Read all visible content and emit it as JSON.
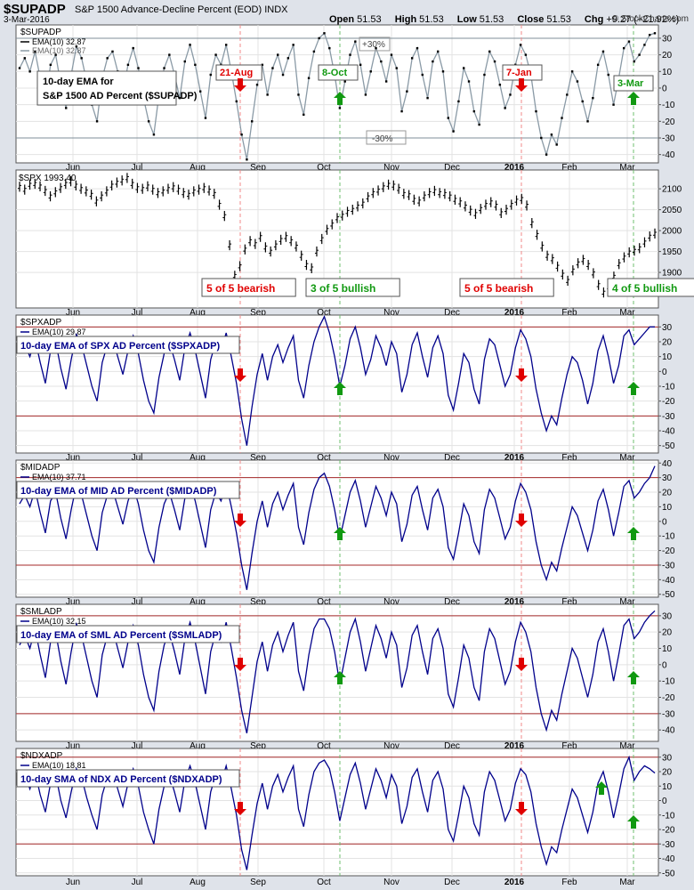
{
  "header": {
    "symbol": "$SUPADP",
    "name": "S&P 1500 Advance-Decline Percent (EOD)",
    "exchange": "INDX",
    "date": "3-Mar-2016",
    "open_label": "Open",
    "open": "51.53",
    "high_label": "High",
    "high": "51.53",
    "low_label": "Low",
    "low": "51.53",
    "close_label": "Close",
    "close": "51.53",
    "chg_label": "Chg",
    "chg": "+9.27 (+21.92%)",
    "logo": "© StockCharts.com"
  },
  "colors": {
    "navy": "#00008b",
    "grey_line": "#8a9aa6",
    "threshold": "#a52a2a",
    "bear": "#e00000",
    "bull": "#119911",
    "background": "#dfe3ea",
    "plot": "#ffffff"
  },
  "x_axis": {
    "months": [
      "Jun",
      "Jul",
      "Aug",
      "Sep",
      "Oct",
      "Nov",
      "Dec",
      "2016",
      "Feb",
      "Mar"
    ]
  },
  "events": {
    "bearish": [
      "21-Aug",
      "7-Jan"
    ],
    "bullish": [
      "8-Oct",
      "3-Mar"
    ]
  },
  "chart_data": [
    {
      "type": "line",
      "id": "supadp",
      "title": "$SUPADP",
      "legend": [
        "$SUPADP",
        "EMA(10) 32.87",
        "EMA(10) 32.87"
      ],
      "annotation": "10-day EMA for S&P 1500 AD Percent ($SUPADP)",
      "ylim": [
        -45,
        38
      ],
      "yticks": [
        30,
        20,
        10,
        0,
        -10,
        -20,
        -30,
        -40
      ],
      "thresholds": [
        30,
        -30
      ],
      "threshold_labels": [
        "+30%",
        "-30%"
      ],
      "event_labels": [
        "21-Aug",
        "8-Oct",
        "7-Jan",
        "3-Mar"
      ],
      "signal": [
        "bear",
        "bull",
        "bear",
        "bull"
      ],
      "extremes": {
        "min": -43,
        "max": 33
      },
      "series": [
        {
          "name": "$SUPADP",
          "values": [
            12,
            18,
            10,
            22,
            6,
            -8,
            14,
            20,
            2,
            -12,
            8,
            25,
            18,
            4,
            -10,
            -20,
            6,
            18,
            22,
            10,
            -2,
            14,
            24,
            12,
            -6,
            -20,
            -28,
            -4,
            12,
            20,
            8,
            -6,
            16,
            26,
            14,
            -2,
            -18,
            8,
            20,
            14,
            26,
            10,
            -8,
            -28,
            -43,
            -20,
            2,
            14,
            -4,
            12,
            20,
            8,
            18,
            26,
            -4,
            -16,
            6,
            22,
            30,
            33,
            24,
            8,
            -12,
            4,
            20,
            28,
            14,
            -4,
            10,
            24,
            16,
            4,
            20,
            12,
            -14,
            -2,
            18,
            24,
            8,
            -6,
            16,
            22,
            10,
            -18,
            -26,
            -8,
            12,
            4,
            -14,
            -22,
            8,
            22,
            16,
            2,
            -12,
            -4,
            14,
            26,
            20,
            8,
            -14,
            -30,
            -40,
            -28,
            -34,
            -18,
            -4,
            10,
            4,
            -8,
            -20,
            -6,
            14,
            22,
            8,
            -10,
            6,
            24,
            28,
            16,
            20,
            26,
            32,
            33
          ]
        }
      ]
    },
    {
      "type": "line",
      "id": "spx",
      "title": "$SPX",
      "legend": [
        "$SPX 1993.40"
      ],
      "ylim": [
        1815,
        2145
      ],
      "yticks": [
        2100,
        2050,
        2000,
        1950,
        1900
      ],
      "signal_labels": [
        "5 of 5 bearish",
        "3 of 5 bullish",
        "5 of 5 bearish",
        "4 of 5 bullish"
      ],
      "series": [
        {
          "name": "$SPX",
          "values": [
            2105,
            2098,
            2110,
            2112,
            2106,
            2095,
            2082,
            2092,
            2102,
            2112,
            2118,
            2108,
            2100,
            2094,
            2086,
            2070,
            2082,
            2094,
            2108,
            2115,
            2120,
            2126,
            2112,
            2102,
            2100,
            2106,
            2098,
            2090,
            2094,
            2100,
            2104,
            2098,
            2090,
            2086,
            2094,
            2098,
            2102,
            2096,
            2088,
            2062,
            2035,
            1965,
            1892,
            1915,
            1955,
            1975,
            1968,
            1985,
            1960,
            1950,
            1965,
            1978,
            1985,
            1975,
            1962,
            1940,
            1918,
            1910,
            1950,
            1980,
            2002,
            2015,
            2030,
            2036,
            2045,
            2050,
            2058,
            2065,
            2080,
            2090,
            2096,
            2104,
            2110,
            2108,
            2100,
            2088,
            2085,
            2074,
            2070,
            2082,
            2090,
            2095,
            2090,
            2088,
            2082,
            2074,
            2068,
            2058,
            2048,
            2040,
            2052,
            2062,
            2068,
            2060,
            2042,
            2050,
            2062,
            2072,
            2076,
            2060,
            2018,
            1990,
            1962,
            1940,
            1932,
            1914,
            1895,
            1880,
            1905,
            1922,
            1930,
            1918,
            1898,
            1870,
            1852,
            1865,
            1890,
            1920,
            1936,
            1948,
            1952,
            1958,
            1972,
            1986,
            1993
          ]
        }
      ]
    },
    {
      "type": "line",
      "id": "spxadp",
      "title": "$SPXADP",
      "legend": [
        "$SPXADP",
        "EMA(10) 29.87"
      ],
      "annotation": "10-day EMA of SPX AD Percent ($SPXADP)",
      "ylim": [
        -55,
        38
      ],
      "yticks": [
        30,
        20,
        10,
        0,
        -10,
        -20,
        -30,
        -40,
        -50
      ],
      "thresholds": [
        30,
        -30
      ],
      "signal": [
        "bear",
        "bull",
        "bear",
        "bull"
      ],
      "extremes": {
        "min": -50,
        "max": 37
      },
      "series": [
        {
          "name": "$SPXADP",
          "values": [
            12,
            18,
            10,
            22,
            6,
            -8,
            14,
            20,
            2,
            -12,
            8,
            25,
            18,
            4,
            -10,
            -20,
            6,
            18,
            22,
            10,
            -2,
            14,
            24,
            12,
            -6,
            -20,
            -28,
            -4,
            12,
            20,
            8,
            -6,
            16,
            26,
            14,
            -2,
            -18,
            8,
            20,
            14,
            26,
            10,
            -8,
            -32,
            -50,
            -24,
            -2,
            12,
            -6,
            10,
            18,
            6,
            16,
            24,
            -6,
            -18,
            4,
            20,
            30,
            37,
            26,
            10,
            -10,
            4,
            22,
            30,
            16,
            -2,
            8,
            24,
            16,
            4,
            20,
            12,
            -14,
            -2,
            18,
            26,
            10,
            -4,
            16,
            24,
            12,
            -16,
            -26,
            -8,
            12,
            6,
            -12,
            -22,
            8,
            22,
            18,
            4,
            -10,
            -2,
            16,
            28,
            22,
            10,
            -12,
            -28,
            -40,
            -30,
            -36,
            -18,
            -2,
            10,
            6,
            -6,
            -22,
            -8,
            14,
            24,
            10,
            -8,
            4,
            24,
            28,
            18,
            22,
            26,
            30,
            30
          ]
        }
      ]
    },
    {
      "type": "line",
      "id": "midadp",
      "title": "$MIDADP",
      "legend": [
        "$MIDADP",
        "EMA(10) 37.71"
      ],
      "annotation": "10-day EMA of MID AD Percent ($MIDADP)",
      "ylim": [
        -52,
        42
      ],
      "yticks": [
        40,
        30,
        20,
        10,
        0,
        -10,
        -20,
        -30,
        -40,
        -50
      ],
      "thresholds": [
        30,
        -30
      ],
      "signal": [
        "bear",
        "bull",
        "bear",
        "bull"
      ],
      "extremes": {
        "min": -47,
        "max": 38
      },
      "series": [
        {
          "name": "$MIDADP",
          "values": [
            12,
            18,
            10,
            22,
            6,
            -8,
            14,
            20,
            2,
            -12,
            8,
            25,
            18,
            4,
            -10,
            -20,
            6,
            18,
            22,
            10,
            -2,
            14,
            24,
            12,
            -6,
            -20,
            -28,
            -4,
            12,
            20,
            8,
            -6,
            16,
            26,
            14,
            -2,
            -18,
            8,
            20,
            14,
            26,
            10,
            -8,
            -30,
            -47,
            -22,
            0,
            14,
            -4,
            12,
            20,
            8,
            18,
            26,
            -4,
            -16,
            6,
            22,
            30,
            33,
            24,
            8,
            -12,
            4,
            20,
            28,
            14,
            -4,
            10,
            24,
            16,
            4,
            20,
            12,
            -14,
            -2,
            18,
            24,
            8,
            -6,
            16,
            22,
            10,
            -18,
            -26,
            -8,
            12,
            4,
            -14,
            -22,
            8,
            22,
            16,
            2,
            -12,
            -4,
            14,
            26,
            20,
            8,
            -14,
            -30,
            -40,
            -28,
            -34,
            -18,
            -4,
            10,
            4,
            -8,
            -20,
            -6,
            14,
            22,
            8,
            -10,
            6,
            24,
            28,
            16,
            20,
            26,
            30,
            38
          ]
        }
      ]
    },
    {
      "type": "line",
      "id": "smladp",
      "title": "$SMLADP",
      "legend": [
        "$SMLADP",
        "EMA(10) 32.15"
      ],
      "annotation": "10-day EMA of SML AD Percent ($SMLADP)",
      "ylim": [
        -47,
        37
      ],
      "yticks": [
        30,
        20,
        10,
        0,
        -10,
        -20,
        -30,
        -40
      ],
      "thresholds": [
        30,
        -30
      ],
      "signal": [
        "bear",
        "bull",
        "bear",
        "bull"
      ],
      "extremes": {
        "min": -42,
        "max": 33
      },
      "series": [
        {
          "name": "$SMLADP",
          "values": [
            12,
            18,
            10,
            22,
            6,
            -8,
            14,
            20,
            2,
            -12,
            8,
            25,
            18,
            4,
            -10,
            -20,
            6,
            18,
            22,
            10,
            -2,
            14,
            24,
            12,
            -6,
            -20,
            -28,
            -4,
            12,
            20,
            8,
            -6,
            16,
            26,
            14,
            -2,
            -18,
            8,
            20,
            14,
            26,
            10,
            -8,
            -28,
            -42,
            -20,
            2,
            14,
            -4,
            12,
            20,
            8,
            18,
            26,
            -4,
            -16,
            6,
            22,
            28,
            28,
            22,
            8,
            -12,
            4,
            20,
            28,
            14,
            -4,
            10,
            24,
            16,
            4,
            20,
            12,
            -14,
            -2,
            18,
            24,
            8,
            -6,
            16,
            22,
            10,
            -18,
            -26,
            -8,
            12,
            4,
            -14,
            -22,
            8,
            22,
            16,
            2,
            -12,
            -4,
            14,
            26,
            20,
            8,
            -14,
            -30,
            -40,
            -28,
            -34,
            -18,
            -4,
            10,
            4,
            -8,
            -20,
            -6,
            14,
            22,
            8,
            -10,
            6,
            24,
            28,
            16,
            20,
            26,
            30,
            33
          ]
        }
      ]
    },
    {
      "type": "line",
      "id": "ndxadp",
      "title": "$NDXADP",
      "legend": [
        "$NDXADP",
        "EMA(10) 18.81"
      ],
      "annotation": "10-day SMA of NDX AD Percent ($NDXADP)",
      "ylim": [
        -52,
        36
      ],
      "yticks": [
        30,
        20,
        10,
        0,
        -10,
        -20,
        -30,
        -40,
        -50
      ],
      "thresholds": [
        30,
        -30
      ],
      "signal": [
        "bear",
        "none",
        "bear",
        "bull"
      ],
      "extremes": {
        "min": -48,
        "max": 30
      },
      "series": [
        {
          "name": "$NDXADP",
          "values": [
            10,
            18,
            8,
            20,
            4,
            -8,
            12,
            18,
            0,
            -12,
            6,
            22,
            16,
            2,
            -10,
            -20,
            4,
            16,
            20,
            8,
            -4,
            12,
            22,
            10,
            -8,
            -20,
            -30,
            -6,
            10,
            18,
            6,
            -8,
            14,
            24,
            12,
            -4,
            -20,
            6,
            18,
            12,
            24,
            8,
            -10,
            -34,
            -48,
            -24,
            -2,
            12,
            -6,
            10,
            18,
            6,
            16,
            24,
            -6,
            -18,
            4,
            20,
            26,
            28,
            22,
            6,
            -14,
            2,
            18,
            26,
            12,
            -6,
            8,
            22,
            14,
            2,
            18,
            10,
            -16,
            -4,
            16,
            22,
            6,
            -8,
            14,
            20,
            8,
            -20,
            -28,
            -10,
            10,
            2,
            -16,
            -24,
            6,
            20,
            14,
            0,
            -14,
            -6,
            12,
            22,
            18,
            6,
            -16,
            -32,
            -44,
            -32,
            -36,
            -20,
            -6,
            8,
            2,
            -10,
            -22,
            -8,
            12,
            20,
            6,
            -12,
            4,
            22,
            30,
            14,
            20,
            24,
            22,
            19
          ]
        }
      ]
    }
  ]
}
